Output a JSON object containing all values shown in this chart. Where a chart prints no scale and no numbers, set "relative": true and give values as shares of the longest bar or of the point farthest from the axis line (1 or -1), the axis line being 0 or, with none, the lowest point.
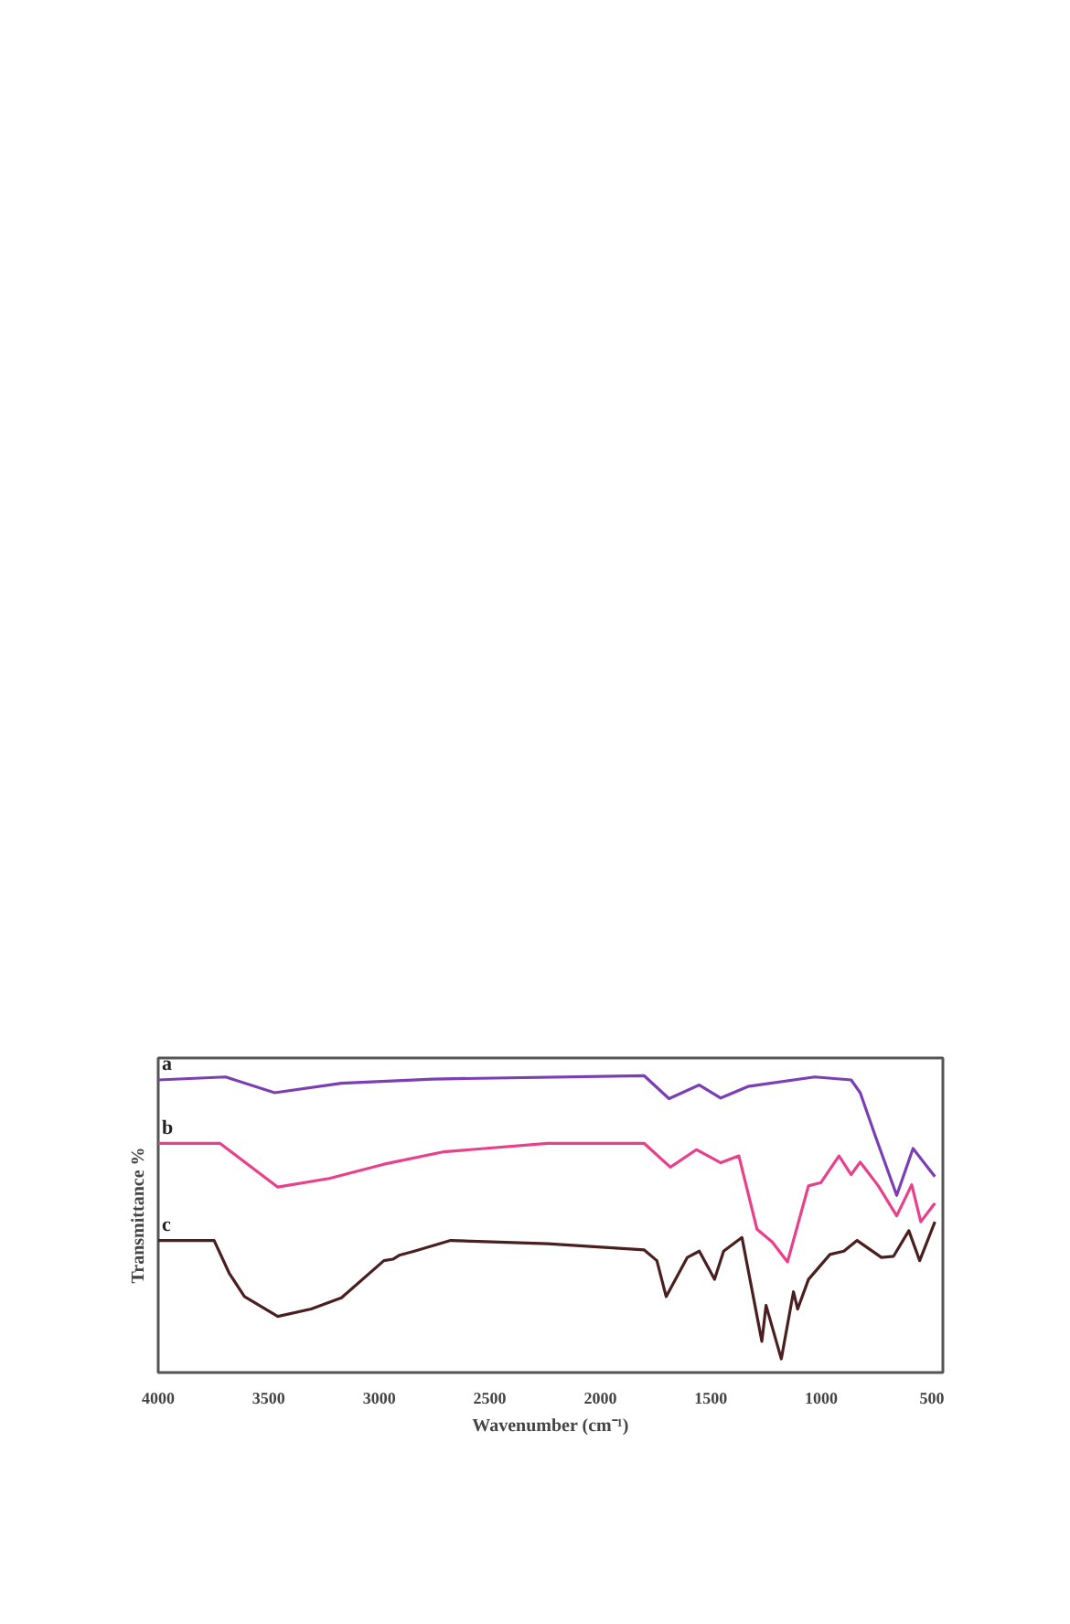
{
  "chart_data": {
    "type": "line",
    "relative": true,
    "xlabel": "Wavenumber (cm⁻¹)",
    "ylabel": "Transmittance %",
    "xlim": [
      4000,
      450
    ],
    "xticks": [
      4000,
      3500,
      3000,
      2500,
      2000,
      1500,
      1000,
      500
    ],
    "grid": false,
    "series": [
      {
        "name": "a",
        "color": "#7b3fb5",
        "x": [
          4000,
          3695,
          3473,
          3171,
          2759,
          1801,
          1689,
          1552,
          1455,
          1332,
          1030,
          865,
          824,
          755,
          659,
          585,
          486
        ],
        "values": [
          0.986,
          0.996,
          0.943,
          0.975,
          0.989,
          1.0,
          0.923,
          0.969,
          0.925,
          0.964,
          0.996,
          0.986,
          0.943,
          0.796,
          0.597,
          0.755,
          0.66
        ]
      },
      {
        "name": "b",
        "color": "#e8408a",
        "x": [
          4000,
          3720,
          3459,
          3226,
          2979,
          2707,
          2238,
          1801,
          1683,
          1565,
          1455,
          1373,
          1291,
          1222,
          1153,
          1058,
          1002,
          920,
          865,
          824,
          742,
          659,
          591,
          550,
          486
        ],
        "values": [
          0.772,
          0.772,
          0.625,
          0.654,
          0.702,
          0.744,
          0.772,
          0.772,
          0.692,
          0.751,
          0.707,
          0.73,
          0.483,
          0.44,
          0.373,
          0.629,
          0.64,
          0.73,
          0.667,
          0.709,
          0.629,
          0.528,
          0.633,
          0.508,
          0.571
        ]
      },
      {
        "name": "c",
        "color": "#4a1f1f",
        "x": [
          4000,
          3747,
          3679,
          3610,
          3459,
          3308,
          3171,
          2979,
          2938,
          2910,
          2841,
          2677,
          2238,
          1801,
          1744,
          1702,
          1606,
          1552,
          1483,
          1442,
          1359,
          1269,
          1250,
          1181,
          1126,
          1107,
          1058,
          961,
          898,
          838,
          728,
          673,
          604,
          555,
          486
        ],
        "values": [
          0.445,
          0.445,
          0.335,
          0.256,
          0.189,
          0.214,
          0.252,
          0.377,
          0.382,
          0.395,
          0.409,
          0.445,
          0.434,
          0.413,
          0.377,
          0.256,
          0.388,
          0.409,
          0.314,
          0.409,
          0.455,
          0.105,
          0.226,
          0.046,
          0.272,
          0.214,
          0.314,
          0.398,
          0.409,
          0.445,
          0.388,
          0.392,
          0.478,
          0.377,
          0.508
        ]
      }
    ]
  }
}
